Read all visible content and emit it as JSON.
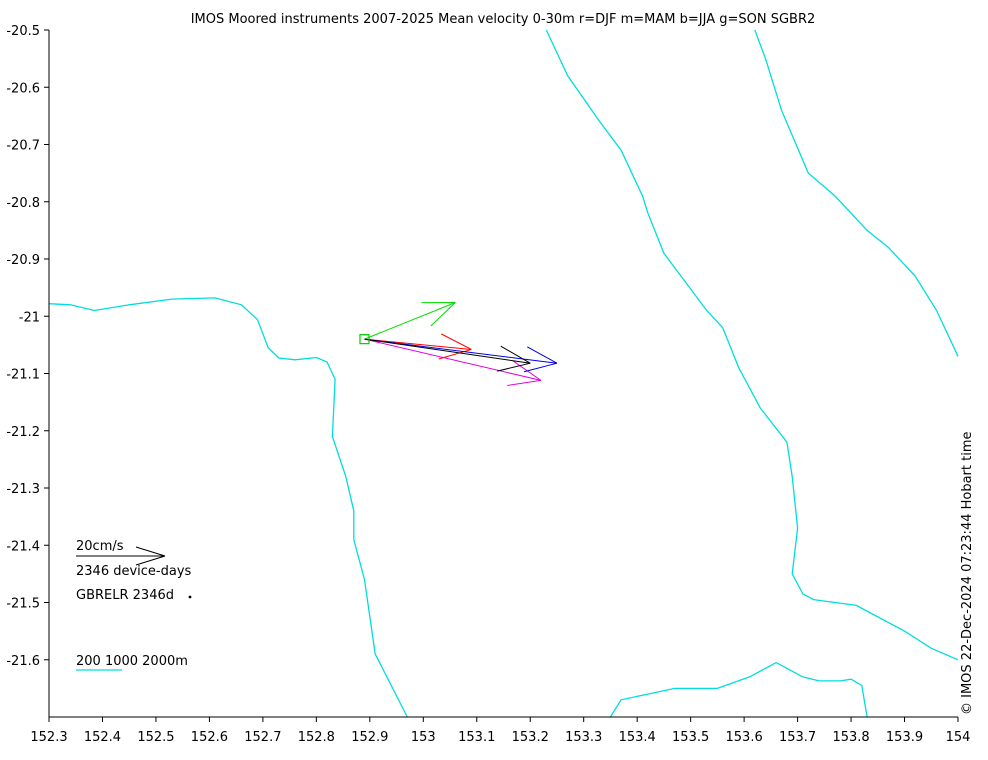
{
  "chart_data": {
    "type": "map",
    "title": "IMOS Moored instruments 2007-2025 Mean velocity 0-30m r=DJF m=MAM b=JJA g=SON SGBR2",
    "xlim": [
      152.3,
      154
    ],
    "ylim": [
      -21.7,
      -20.5
    ],
    "x_ticks": [
      152.3,
      152.4,
      152.5,
      152.6,
      152.7,
      152.8,
      152.9,
      153,
      153.1,
      153.2,
      153.3,
      153.4,
      153.5,
      153.6,
      153.7,
      153.8,
      153.9,
      154
    ],
    "x_tick_labels": [
      "152.3",
      "152.4",
      "152.5",
      "152.6",
      "152.7",
      "152.8",
      "152.9",
      "153",
      "153.1",
      "153.2",
      "153.3",
      "153.4",
      "153.5",
      "153.6",
      "153.7",
      "153.8",
      "153.9",
      "154"
    ],
    "y_ticks": [
      -20.5,
      -20.6,
      -20.7,
      -20.8,
      -20.9,
      -21,
      -21.1,
      -21.2,
      -21.3,
      -21.4,
      -21.5,
      -21.6
    ],
    "y_tick_labels": [
      "-20.5",
      "-20.6",
      "-20.7",
      "-20.8",
      "-20.9",
      "-21",
      "-21.1",
      "-21.2",
      "-21.3",
      "-21.4",
      "-21.5",
      "-21.6"
    ],
    "station": {
      "name": "GBRELR",
      "lon": 152.89,
      "lat": -21.04,
      "color": "#00cc00"
    },
    "arrows": [
      {
        "season": "DJF",
        "color": "#ff0000",
        "lon0": 152.89,
        "lat0": -21.04,
        "lon1": 153.09,
        "lat1": -21.058
      },
      {
        "season": "MAM",
        "color": "#e000e0",
        "lon0": 152.89,
        "lat0": -21.04,
        "lon1": 153.22,
        "lat1": -21.112
      },
      {
        "season": "JJA",
        "color": "#0000e0",
        "lon0": 152.89,
        "lat0": -21.04,
        "lon1": 153.25,
        "lat1": -21.082
      },
      {
        "season": "SON",
        "color": "#00dd00",
        "lon0": 152.89,
        "lat0": -21.04,
        "lon1": 153.06,
        "lat1": -20.976
      },
      {
        "season": "annual",
        "color": "#000000",
        "lon0": 152.89,
        "lat0": -21.04,
        "lon1": 153.2,
        "lat1": -21.082
      }
    ],
    "contours": [
      {
        "depth": "200m",
        "color": "#00dddd",
        "points": [
          [
            152.3,
            -20.978
          ],
          [
            152.34,
            -20.98
          ],
          [
            152.385,
            -20.99
          ],
          [
            152.45,
            -20.98
          ],
          [
            152.53,
            -20.97
          ],
          [
            152.61,
            -20.968
          ],
          [
            152.66,
            -20.98
          ],
          [
            152.69,
            -21.006
          ],
          [
            152.71,
            -21.055
          ],
          [
            152.73,
            -21.073
          ],
          [
            152.76,
            -21.076
          ],
          [
            152.8,
            -21.072
          ],
          [
            152.82,
            -21.08
          ],
          [
            152.835,
            -21.11
          ],
          [
            152.83,
            -21.21
          ],
          [
            152.855,
            -21.28
          ],
          [
            152.87,
            -21.34
          ],
          [
            152.87,
            -21.39
          ],
          [
            152.89,
            -21.46
          ],
          [
            152.91,
            -21.59
          ],
          [
            152.97,
            -21.7
          ]
        ]
      },
      {
        "depth": "1000m",
        "color": "#00dddd",
        "points": [
          [
            153.23,
            -20.5
          ],
          [
            153.27,
            -20.58
          ],
          [
            153.33,
            -20.66
          ],
          [
            153.37,
            -20.71
          ],
          [
            153.41,
            -20.79
          ],
          [
            153.42,
            -20.82
          ],
          [
            153.45,
            -20.89
          ],
          [
            153.49,
            -20.94
          ],
          [
            153.53,
            -20.99
          ],
          [
            153.56,
            -21.02
          ],
          [
            153.59,
            -21.09
          ],
          [
            153.63,
            -21.16
          ],
          [
            153.68,
            -21.22
          ],
          [
            153.69,
            -21.28
          ],
          [
            153.7,
            -21.37
          ],
          [
            153.69,
            -21.45
          ],
          [
            153.71,
            -21.485
          ],
          [
            153.73,
            -21.495
          ],
          [
            153.81,
            -21.505
          ],
          [
            153.84,
            -21.52
          ],
          [
            153.9,
            -21.55
          ],
          [
            153.95,
            -21.58
          ],
          [
            154.0,
            -21.6
          ]
        ]
      },
      {
        "depth": "2000m",
        "color": "#00dddd",
        "points": [
          [
            153.62,
            -20.5
          ],
          [
            153.64,
            -20.55
          ],
          [
            153.67,
            -20.64
          ],
          [
            153.72,
            -20.75
          ],
          [
            153.77,
            -20.79
          ],
          [
            153.8,
            -20.82
          ],
          [
            153.83,
            -20.85
          ],
          [
            153.87,
            -20.88
          ],
          [
            153.92,
            -20.93
          ],
          [
            153.96,
            -20.99
          ],
          [
            154.0,
            -21.07
          ]
        ]
      },
      {
        "depth": "200m",
        "color": "#00dddd",
        "points": [
          [
            153.35,
            -21.7
          ],
          [
            153.37,
            -21.67
          ],
          [
            153.42,
            -21.66
          ],
          [
            153.47,
            -21.65
          ],
          [
            153.55,
            -21.65
          ],
          [
            153.61,
            -21.63
          ],
          [
            153.66,
            -21.605
          ],
          [
            153.71,
            -21.63
          ],
          [
            153.74,
            -21.637
          ],
          [
            153.78,
            -21.637
          ],
          [
            153.8,
            -21.634
          ],
          [
            153.82,
            -21.645
          ],
          [
            153.83,
            -21.7
          ]
        ]
      }
    ],
    "scale_arrow": {
      "label": "20cm/s",
      "days_label": "2346 device-days"
    },
    "station_label": "GBRELR 2346d",
    "depth_legend": "200 1000 2000m",
    "watermark": "© IMOS 22-Dec-2024 07:23:44 Hobart time"
  },
  "colors": {
    "contour": "#00dddd",
    "axis": "#000000",
    "background": "#ffffff"
  }
}
